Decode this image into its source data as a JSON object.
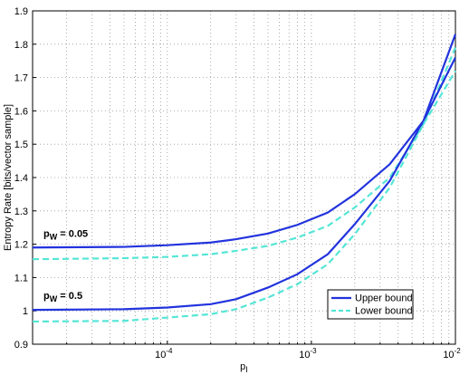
{
  "chart_data": {
    "type": "line",
    "ylabel": "Entropy Rate [bits/vector sample]",
    "xlabel": {
      "text": "p",
      "sub": "I"
    },
    "xlog": true,
    "xlim": [
      1.16e-05,
      0.01
    ],
    "xticks": [
      {
        "value": 0.0001,
        "label": "10",
        "exp": "-4"
      },
      {
        "value": 0.001,
        "label": "10",
        "exp": "-3"
      },
      {
        "value": 0.01,
        "label": "10",
        "exp": "-2"
      }
    ],
    "xminor": [
      2e-05,
      3e-05,
      4e-05,
      5e-05,
      6e-05,
      7e-05,
      8e-05,
      9e-05,
      0.0002,
      0.0003,
      0.0004,
      0.0005,
      0.0006,
      0.0007,
      0.0008,
      0.0009,
      0.002,
      0.003,
      0.004,
      0.005,
      0.006,
      0.007,
      0.008,
      0.009
    ],
    "ylim": [
      0.9,
      1.9
    ],
    "yticks": [
      0.9,
      1,
      1.1,
      1.2,
      1.3,
      1.4,
      1.5,
      1.6,
      1.7,
      1.8,
      1.9
    ],
    "grid": true,
    "legend": "lower-right",
    "x": [
      1.16e-05,
      5e-05,
      0.0001,
      0.0002,
      0.0003,
      0.0005,
      0.0008,
      0.0013,
      0.002,
      0.0035,
      0.006,
      0.01
    ],
    "series": [
      {
        "name": "Upper bound",
        "color": "#2233dd",
        "dash": false,
        "values": [
          1.19,
          1.192,
          1.197,
          1.205,
          1.215,
          1.232,
          1.258,
          1.295,
          1.35,
          1.44,
          1.57,
          1.83
        ]
      },
      {
        "name": "Lower bound",
        "color": "#55e6d6",
        "dash": true,
        "values": [
          1.155,
          1.158,
          1.162,
          1.17,
          1.18,
          1.195,
          1.22,
          1.255,
          1.31,
          1.4,
          1.56,
          1.79
        ]
      },
      {
        "color": "#2233dd",
        "dash": false,
        "values": [
          1.003,
          1.005,
          1.01,
          1.02,
          1.035,
          1.07,
          1.11,
          1.17,
          1.26,
          1.39,
          1.57,
          1.76
        ]
      },
      {
        "color": "#55e6d6",
        "dash": true,
        "values": [
          0.968,
          0.97,
          0.98,
          0.99,
          1.005,
          1.04,
          1.08,
          1.14,
          1.23,
          1.37,
          1.56,
          1.72
        ]
      }
    ],
    "annotations": [
      {
        "text": "p",
        "sub": "W",
        "rest": " = 0.05"
      },
      {
        "text": "p",
        "sub": "W",
        "rest": " = 0.5"
      }
    ]
  }
}
